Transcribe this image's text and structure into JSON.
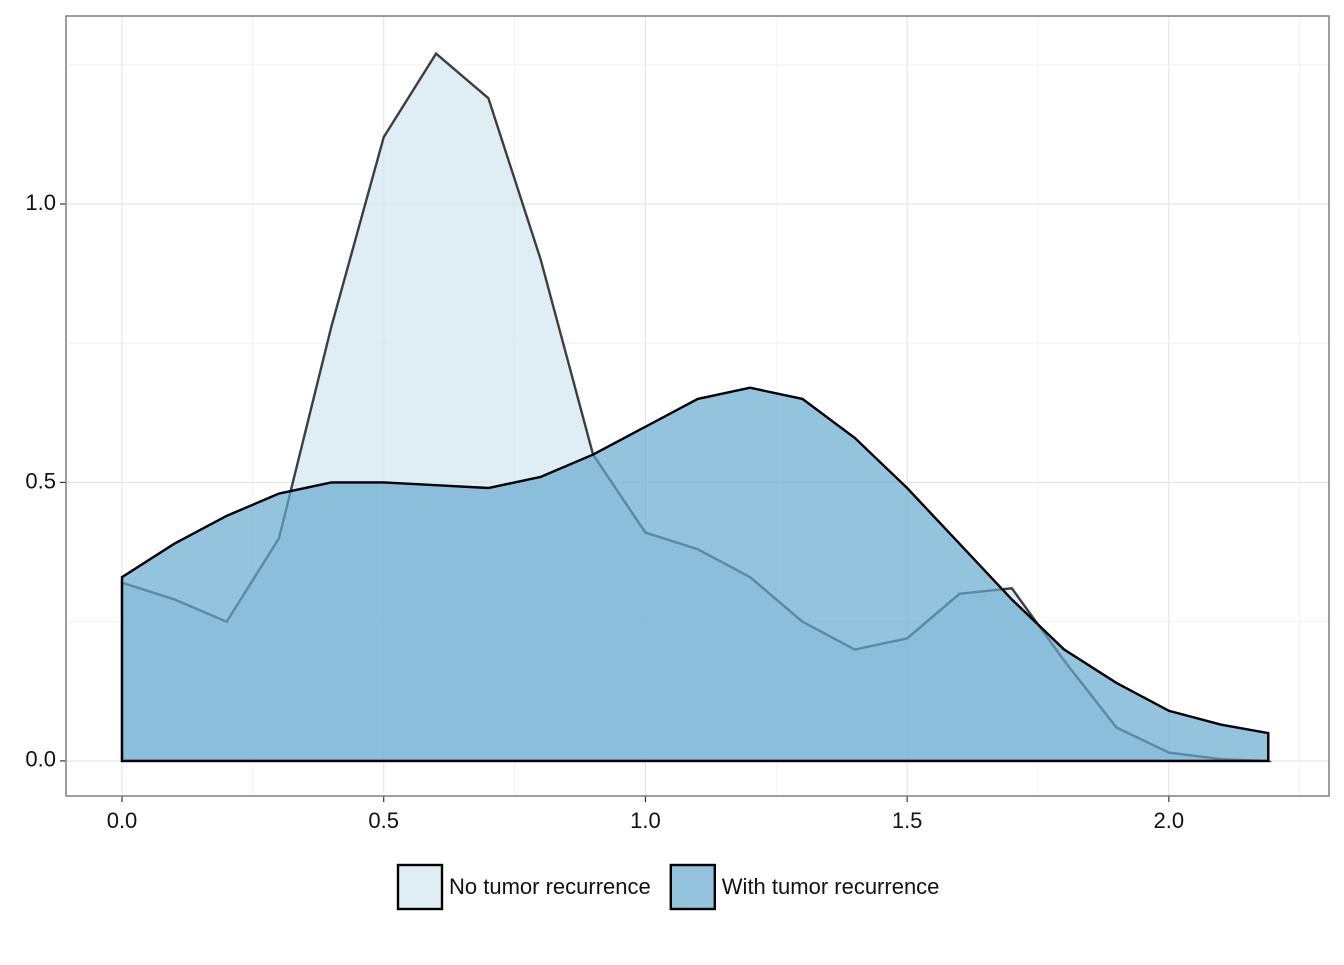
{
  "chart_data": {
    "type": "area",
    "x": [
      0,
      0.1,
      0.2,
      0.3,
      0.4,
      0.5,
      0.6,
      0.7,
      0.8,
      0.9,
      1.0,
      1.1,
      1.2,
      1.3,
      1.4,
      1.5,
      1.6,
      1.7,
      1.8,
      1.9,
      2.0,
      2.1,
      2.19
    ],
    "series": [
      {
        "name": "No tumor recurrence",
        "color": "#d1e5f0",
        "values": [
          0.32,
          0.29,
          0.25,
          0.4,
          0.78,
          1.12,
          1.27,
          1.19,
          0.9,
          0.55,
          0.41,
          0.38,
          0.33,
          0.25,
          0.2,
          0.22,
          0.3,
          0.31,
          0.18,
          0.06,
          0.015,
          0.003,
          0.0
        ]
      },
      {
        "name": "With tumor recurrence",
        "color": "#67a9cf",
        "values": [
          0.33,
          0.39,
          0.44,
          0.48,
          0.5,
          0.5,
          0.495,
          0.49,
          0.51,
          0.55,
          0.6,
          0.65,
          0.67,
          0.65,
          0.58,
          0.49,
          0.39,
          0.29,
          0.2,
          0.14,
          0.09,
          0.065,
          0.05
        ]
      }
    ],
    "xlim": [
      -0.107,
      2.306
    ],
    "ylim": [
      -0.063,
      1.3375
    ],
    "xticks": [
      {
        "value": 0,
        "label": "0.0"
      },
      {
        "value": 0.5,
        "label": "0.5"
      },
      {
        "value": 1,
        "label": "1.0"
      },
      {
        "value": 1.5,
        "label": "1.5"
      },
      {
        "value": 2,
        "label": "2.0"
      }
    ],
    "yticks": [
      {
        "value": 0,
        "label": "0.0"
      },
      {
        "value": 0.5,
        "label": "0.5"
      },
      {
        "value": 1,
        "label": "1.0"
      }
    ],
    "grid": true,
    "legend": "bottom"
  }
}
